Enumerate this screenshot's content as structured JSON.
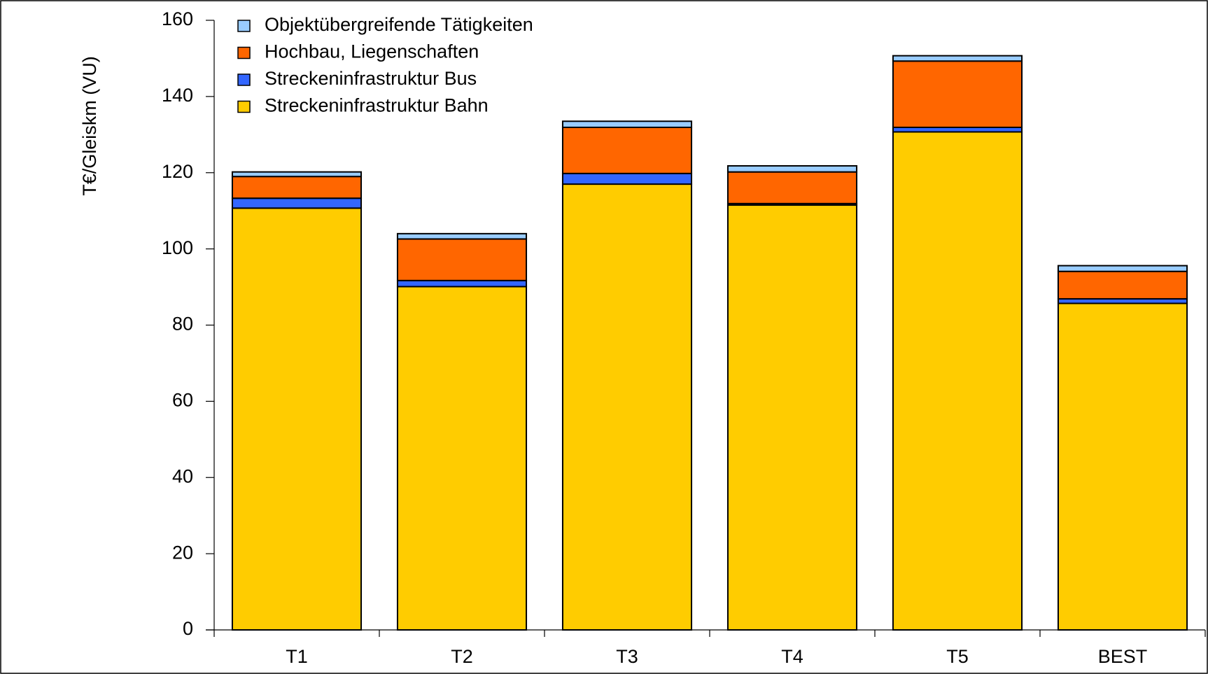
{
  "chart_data": {
    "type": "stacked_bar",
    "y_label": "T€/Gleiskm (VU)",
    "categories": [
      "T1",
      "T2",
      "T3",
      "T4",
      "T5",
      "BEST"
    ],
    "series": [
      {
        "name": "Streckeninfrastruktur Bahn",
        "color": "#ffcc00",
        "values": [
          110.7,
          90.1,
          117,
          111.5,
          130.7,
          85.7
        ]
      },
      {
        "name": "Streckeninfrastruktur Bus",
        "color": "#3366ff",
        "values": [
          2.6,
          1.6,
          2.8,
          0.4,
          1.2,
          1.2
        ]
      },
      {
        "name": "Hochbau, Liegenschaften",
        "color": "#ff6600",
        "values": [
          5.7,
          10.9,
          12.1,
          8.3,
          17.4,
          7.2
        ]
      },
      {
        "name": "Objektübergreifende Tätigkeiten",
        "color": "#99ccff",
        "values": [
          1.2,
          1.4,
          1.6,
          1.6,
          1.4,
          1.5
        ]
      }
    ],
    "ylim": [
      0,
      160
    ],
    "yticks": [
      0,
      20,
      40,
      60,
      80,
      100,
      120,
      140,
      160
    ]
  }
}
